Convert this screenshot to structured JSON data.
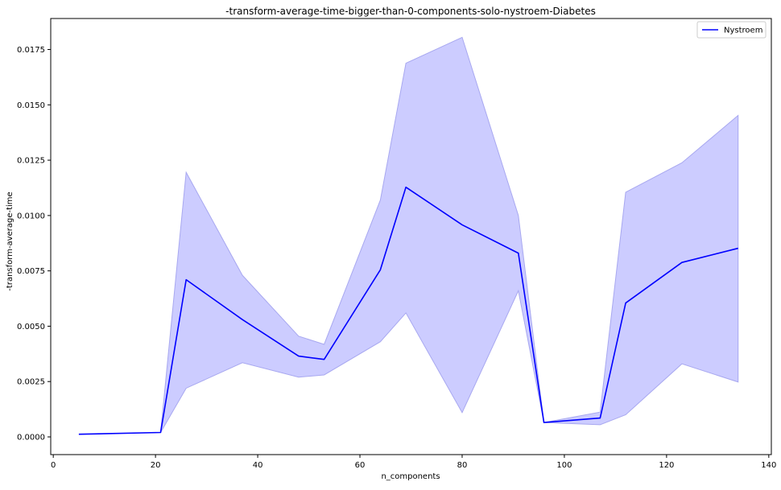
{
  "chart_data": {
    "type": "line",
    "title": "-transform-average-time-bigger-than-0-components-solo-nystroem-Diabetes",
    "xlabel": "n_components",
    "ylabel": "-transform-average-time",
    "xlim": [
      -0.5,
      140.5
    ],
    "ylim": [
      -0.0008,
      0.0189
    ],
    "xticks": [
      0,
      20,
      40,
      60,
      80,
      100,
      120,
      140
    ],
    "xtick_labels": [
      "0",
      "20",
      "40",
      "60",
      "80",
      "100",
      "120",
      "140"
    ],
    "yticks": [
      0.0,
      0.0025,
      0.005,
      0.0075,
      0.01,
      0.0125,
      0.015,
      0.0175
    ],
    "ytick_labels": [
      "0.0000",
      "0.0025",
      "0.0050",
      "0.0075",
      "0.0100",
      "0.0125",
      "0.0150",
      "0.0175"
    ],
    "grid": false,
    "legend_position": "top-right",
    "series": [
      {
        "name": "Nystroem",
        "color": "#0000ff",
        "band_color": "#ccccff",
        "band_edge_color": "#a8a8f0",
        "x": [
          5,
          21,
          26,
          37,
          48,
          53,
          64,
          69,
          80,
          91,
          96,
          107,
          112,
          123,
          134
        ],
        "values": [
          0.00012,
          0.0002,
          0.0071,
          0.0053,
          0.00365,
          0.0035,
          0.00755,
          0.01128,
          0.00958,
          0.0083,
          0.00065,
          0.00085,
          0.00605,
          0.00788,
          0.00852
        ],
        "upper": [
          0.00012,
          0.0002,
          0.01195,
          0.0073,
          0.00455,
          0.00418,
          0.0107,
          0.01688,
          0.01805,
          0.01,
          0.00065,
          0.00112,
          0.01105,
          0.01238,
          0.01452
        ],
        "lower": [
          0.00012,
          0.0002,
          0.0022,
          0.00335,
          0.0027,
          0.0028,
          0.0043,
          0.0056,
          0.0011,
          0.0066,
          0.00065,
          0.00055,
          0.001,
          0.0033,
          0.00248
        ]
      }
    ]
  }
}
